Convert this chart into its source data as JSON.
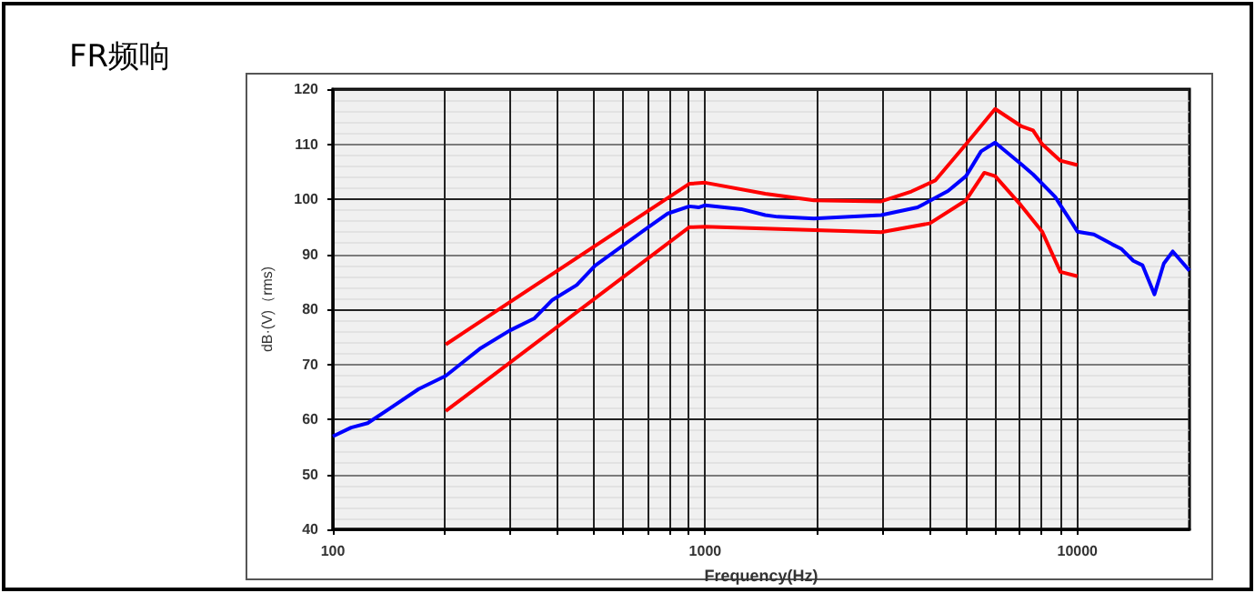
{
  "chart_data": {
    "type": "line",
    "title": "FR频响",
    "xlabel": "Frequency(Hz)",
    "ylabel": "dB·(V)（rms)",
    "log": "x",
    "xlim": [
      100,
      20000
    ],
    "ylim": [
      40,
      120
    ],
    "xticks": [
      100,
      {
        "value": 200,
        "label": null
      },
      {
        "value": 300,
        "label": null
      },
      {
        "value": 400,
        "label": null
      },
      {
        "value": 500,
        "label": null
      },
      {
        "value": 600,
        "label": null
      },
      {
        "value": 700,
        "label": null
      },
      {
        "value": 800,
        "label": null
      },
      {
        "value": 900,
        "label": null
      },
      1000,
      {
        "value": 2000,
        "label": null
      },
      {
        "value": 3000,
        "label": null
      },
      {
        "value": 4000,
        "label": null
      },
      {
        "value": 5000,
        "label": null
      },
      {
        "value": 6000,
        "label": null
      },
      {
        "value": 7000,
        "label": null
      },
      {
        "value": 8000,
        "label": null
      },
      {
        "value": 9000,
        "label": null
      },
      10000
    ],
    "yticks": [
      40,
      50,
      60,
      70,
      80,
      90,
      100,
      110,
      120
    ],
    "grid": true,
    "marker": "none",
    "line_style": "solid",
    "series": [
      {
        "color": "#ff0000",
        "x": [
          201,
          906,
          1000,
          1450,
          1960,
          2970,
          3580,
          4150,
          5020,
          6010,
          7050,
          7600,
          8040,
          9000,
          10000
        ],
        "values": [
          73.6,
          102.8,
          103,
          101,
          99.8,
          99.6,
          101.4,
          103.4,
          110,
          116.4,
          113.3,
          112.5,
          110,
          107,
          106.2
        ]
      },
      {
        "color": "#0000ff",
        "x": [
          100,
          112,
          124,
          141,
          170,
          201,
          248,
          298,
          347,
          389,
          452,
          506,
          684,
          794,
          906,
          960,
          1000,
          1250,
          1450,
          1566,
          1960,
          2970,
          3720,
          4490,
          5020,
          5510,
          6010,
          7050,
          7600,
          8720,
          9000,
          9730,
          10000,
          11070,
          12400,
          13100,
          14130,
          14950,
          16100,
          17060,
          18030,
          20000
        ],
        "values": [
          56.9,
          58.5,
          59.3,
          61.8,
          65.5,
          67.9,
          72.8,
          76.1,
          78.3,
          81.7,
          84.4,
          87.9,
          94.3,
          97.4,
          98.7,
          98.5,
          98.9,
          98.2,
          97.1,
          96.8,
          96.5,
          97.1,
          98.5,
          101.5,
          104.2,
          108.7,
          110.3,
          106.4,
          104.5,
          100.4,
          98.9,
          95.4,
          94.1,
          93.6,
          91.8,
          91,
          88.8,
          88,
          82.7,
          88.3,
          90.5,
          87
        ]
      },
      {
        "color": "#ff0000",
        "x": [
          201,
          906,
          1000,
          2970,
          4010,
          5020,
          5620,
          6010,
          7050,
          8040,
          9000,
          10000
        ],
        "values": [
          61.5,
          94.9,
          95,
          94,
          95.6,
          99.8,
          104.8,
          104.2,
          98.9,
          94.1,
          86.8,
          86
        ]
      }
    ]
  }
}
